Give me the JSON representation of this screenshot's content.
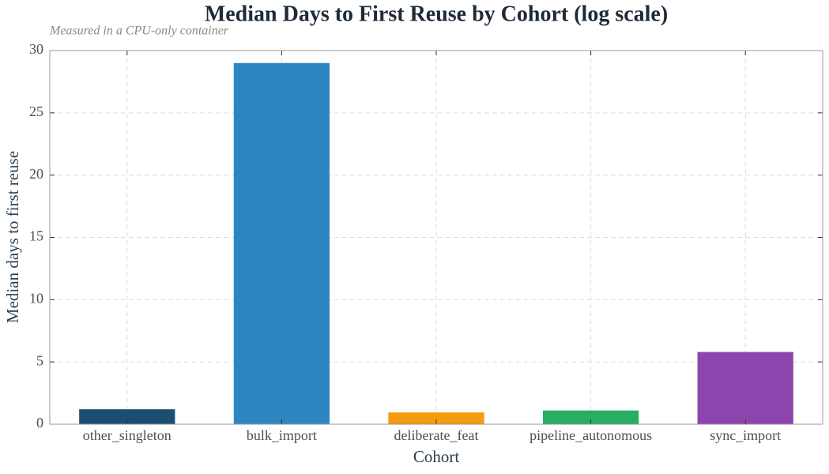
{
  "chart_data": {
    "type": "bar",
    "title": "Median Days to First Reuse by Cohort (log scale)",
    "subtitle": "Measured in a CPU-only container",
    "x_label": "Cohort",
    "y_label": "Median days to first reuse",
    "categories": [
      "other_singleton",
      "bulk_import",
      "deliberate_feat",
      "pipeline_autonomous",
      "sync_import"
    ],
    "values": [
      1.2,
      29.0,
      0.95,
      1.1,
      5.8
    ],
    "colors": [
      "#1b4f72",
      "#2e86c1",
      "#f39c12",
      "#27ae60",
      "#8e44ad"
    ],
    "ylim": [
      0,
      30
    ],
    "yticks": [
      0,
      5,
      10,
      15,
      20,
      25,
      30
    ],
    "grid": true
  }
}
